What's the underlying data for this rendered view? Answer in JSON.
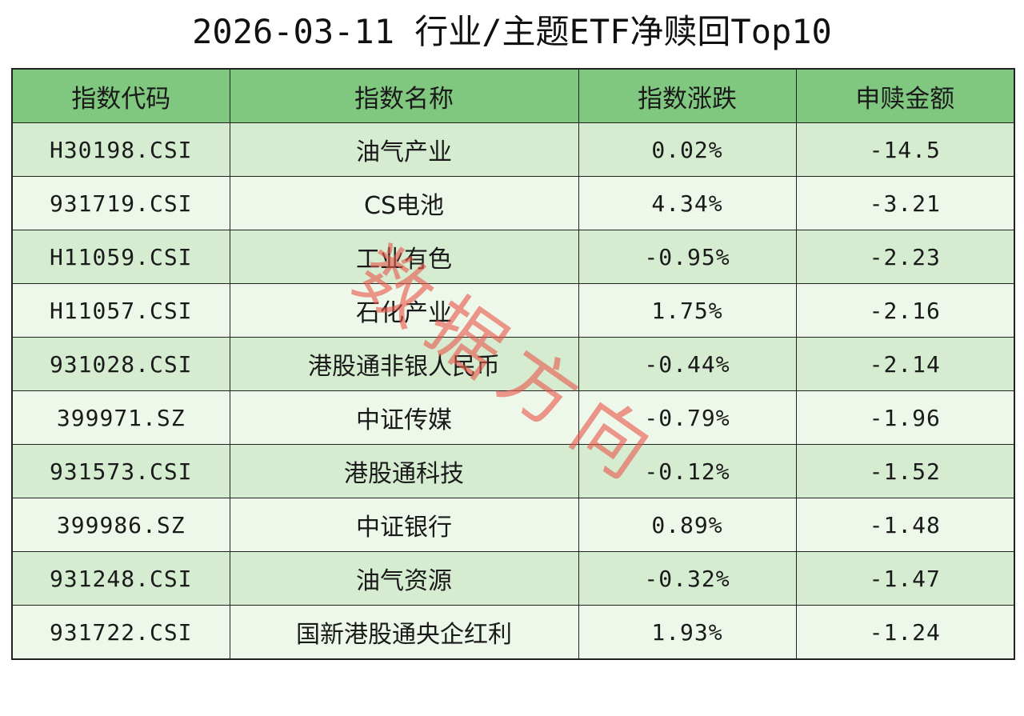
{
  "watermark": "数据方向",
  "colors": {
    "header_background": "#80c77f",
    "row_background_odd": "#d5ecd1",
    "row_background_even": "#edf7ea",
    "border": "#222222",
    "watermark": "#e8584c"
  },
  "chart_data": {
    "type": "table",
    "title": "2026-03-11 行业/主题ETF净赎回Top10",
    "columns": [
      "指数代码",
      "指数名称",
      "指数涨跌",
      "申赎金额"
    ],
    "rows": [
      [
        "H30198.CSI",
        "油气产业",
        "0.02%",
        "-14.5"
      ],
      [
        "931719.CSI",
        "CS电池",
        "4.34%",
        "-3.21"
      ],
      [
        "H11059.CSI",
        "工业有色",
        "-0.95%",
        "-2.23"
      ],
      [
        "H11057.CSI",
        "石化产业",
        "1.75%",
        "-2.16"
      ],
      [
        "931028.CSI",
        "港股通非银人民币",
        "-0.44%",
        "-2.14"
      ],
      [
        "399971.SZ",
        "中证传媒",
        "-0.79%",
        "-1.96"
      ],
      [
        "931573.CSI",
        "港股通科技",
        "-0.12%",
        "-1.52"
      ],
      [
        "399986.SZ",
        "中证银行",
        "0.89%",
        "-1.48"
      ],
      [
        "931248.CSI",
        "油气资源",
        "-0.32%",
        "-1.47"
      ],
      [
        "931722.CSI",
        "国新港股通央企红利",
        "1.93%",
        "-1.24"
      ]
    ]
  }
}
